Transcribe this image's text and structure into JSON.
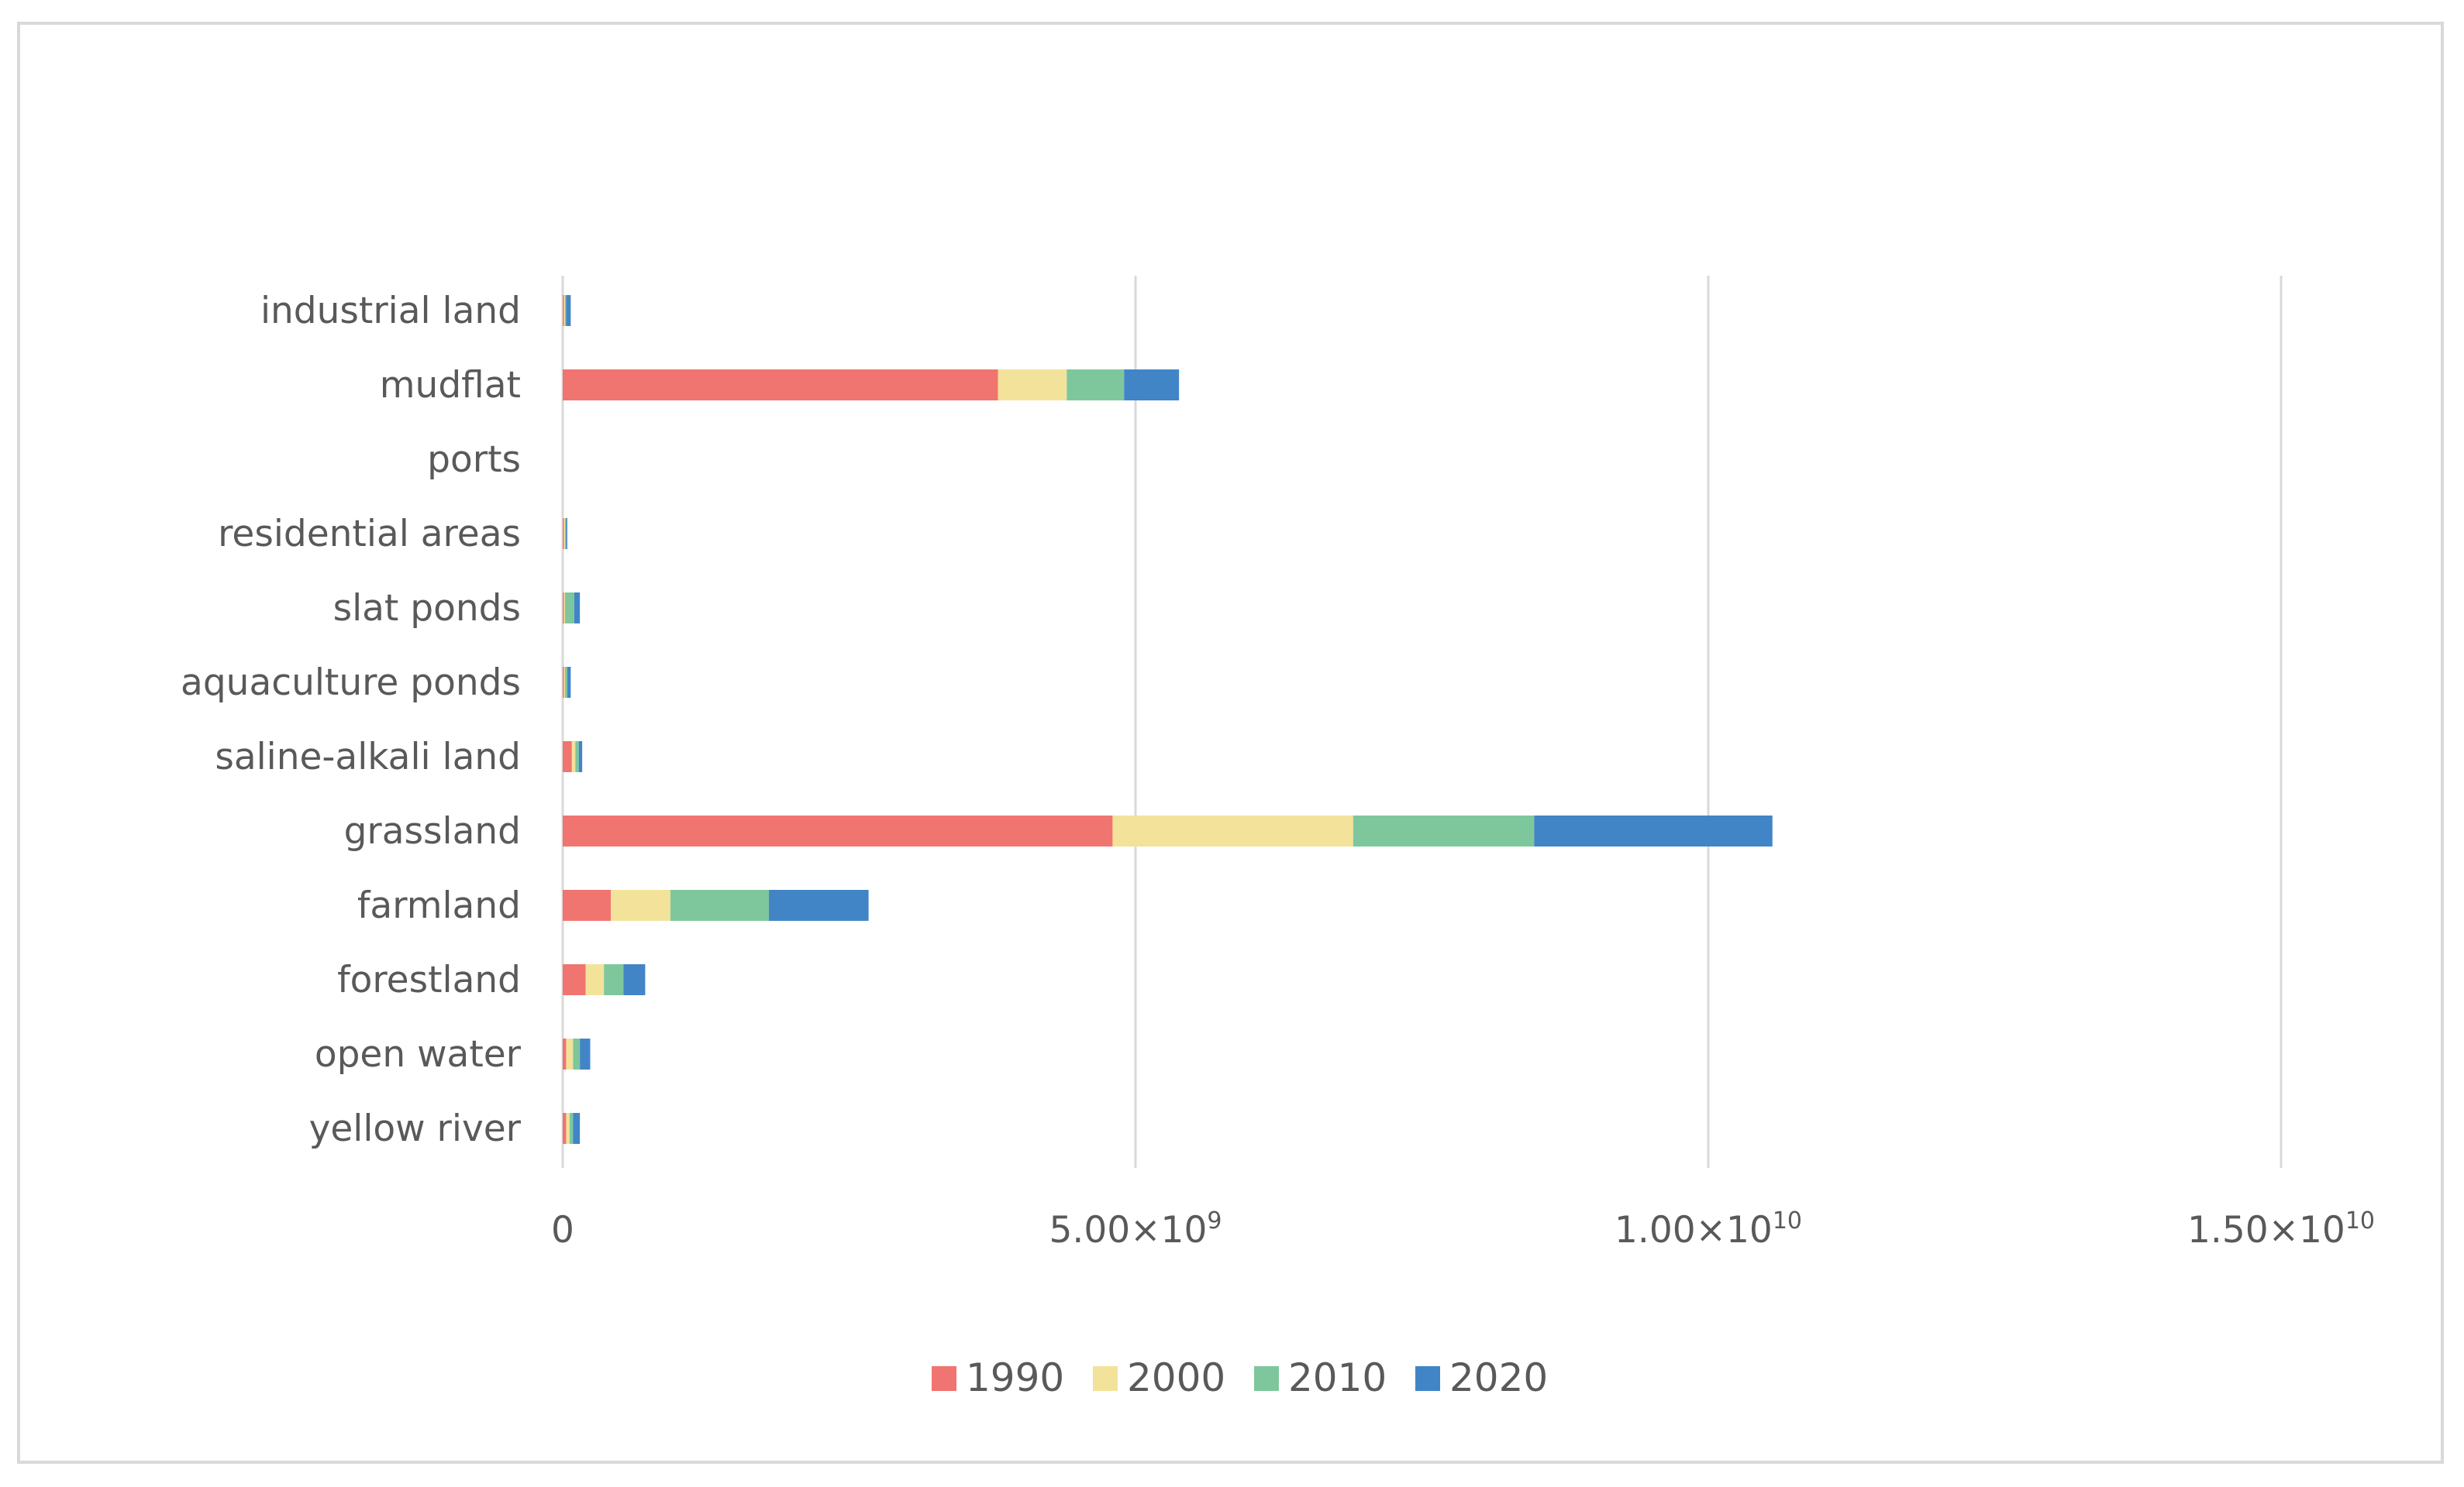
{
  "chart_data": {
    "type": "bar",
    "orientation": "horizontal",
    "stacked": true,
    "title": "",
    "xlabel": "",
    "ylabel": "",
    "xlim": [
      0,
      16000000000
    ],
    "grid": true,
    "legend_position": "bottom",
    "categories": [
      "yellow river",
      "open water",
      "forestland",
      "farmland",
      "grassland",
      "saline-alkali land",
      "aquaculture ponds",
      "slat ponds",
      "residential areas",
      "ports",
      "mudflat",
      "industrial land"
    ],
    "series": [
      {
        "name": "1990",
        "color": "#f07470",
        "values": [
          30000000,
          30000000,
          200000000,
          420000000,
          4800000000,
          80000000,
          10000000,
          10000000,
          10000000,
          0,
          3800000000,
          10000000
        ]
      },
      {
        "name": "2000",
        "color": "#f3e29a",
        "values": [
          30000000,
          60000000,
          160000000,
          520000000,
          2100000000,
          30000000,
          10000000,
          10000000,
          10000000,
          0,
          600000000,
          10000000
        ]
      },
      {
        "name": "2010",
        "color": "#7ec79c",
        "values": [
          30000000,
          60000000,
          170000000,
          860000000,
          1580000000,
          30000000,
          20000000,
          80000000,
          10000000,
          0,
          500000000,
          10000000
        ]
      },
      {
        "name": "2020",
        "color": "#4185c7",
        "values": [
          60000000,
          90000000,
          190000000,
          870000000,
          2080000000,
          30000000,
          30000000,
          50000000,
          10000000,
          0,
          480000000,
          40000000
        ]
      }
    ],
    "x_ticks": [
      {
        "value": 0,
        "mantissa": "0",
        "exponent": ""
      },
      {
        "value": 5000000000,
        "mantissa": "5.00×10",
        "exponent": "9"
      },
      {
        "value": 10000000000,
        "mantissa": "1.00×10",
        "exponent": "10"
      },
      {
        "value": 15000000000,
        "mantissa": "1.50×10",
        "exponent": "10"
      }
    ]
  },
  "colors": {
    "grid": "#d9d9d9",
    "text": "#595959",
    "frame": "#d9d9d9"
  }
}
